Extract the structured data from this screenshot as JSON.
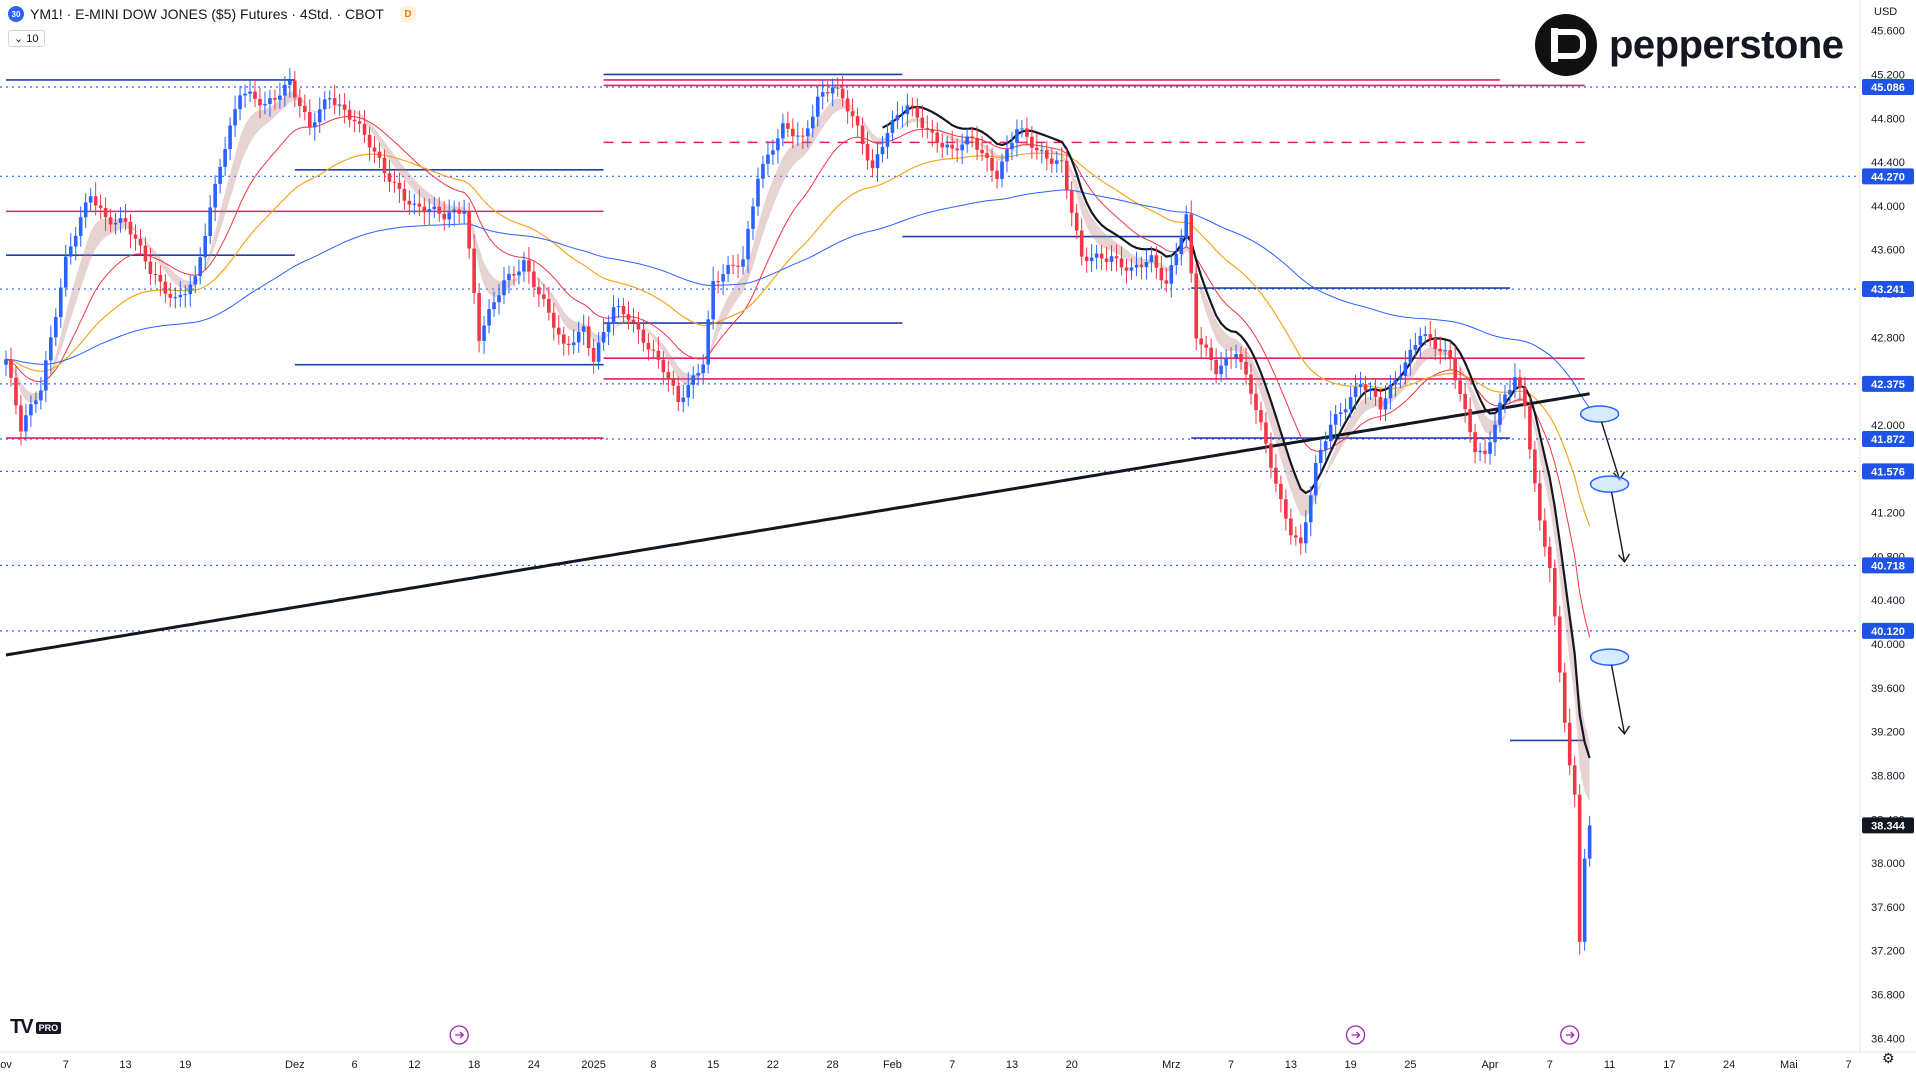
{
  "header": {
    "symbol_badge": "30",
    "title": "YM1! · E-MINI DOW JONES ($5) Futures · 4Std. · CBOT",
    "delay_badge": "D",
    "indicator_toggle": "⌄ 10"
  },
  "currency": "USD",
  "brand": {
    "name": "pepperstone"
  },
  "tv": {
    "mark": "TV",
    "pro": "PRO"
  },
  "scale_button": "⚙",
  "colors": {
    "up": "#2962ff",
    "down": "#f23645",
    "level_line": "#1e40af",
    "zone_line": "#e91e63",
    "ema_black": "#131722"
  },
  "chart_data": {
    "type": "candlestick",
    "title": "YM1! · E-MINI DOW JONES ($5) Futures · 4Std. · CBOT",
    "ylim": [
      36200,
      46000
    ],
    "y_ticks": [
      36400,
      36800,
      37200,
      37600,
      38000,
      38400,
      38800,
      39200,
      39600,
      40000,
      40400,
      40800,
      41200,
      41600,
      42000,
      42400,
      42800,
      43200,
      43600,
      44000,
      44400,
      44800,
      45200,
      45600
    ],
    "x_ticks": [
      {
        "label": "ov",
        "i": 0
      },
      {
        "label": "7",
        "i": 12
      },
      {
        "label": "13",
        "i": 24
      },
      {
        "label": "19",
        "i": 36
      },
      {
        "label": "Dez",
        "i": 58
      },
      {
        "label": "6",
        "i": 70
      },
      {
        "label": "12",
        "i": 82
      },
      {
        "label": "18",
        "i": 94
      },
      {
        "label": "24",
        "i": 106
      },
      {
        "label": "2025",
        "i": 118
      },
      {
        "label": "8",
        "i": 130
      },
      {
        "label": "15",
        "i": 142
      },
      {
        "label": "22",
        "i": 154
      },
      {
        "label": "28",
        "i": 166
      },
      {
        "label": "Feb",
        "i": 178
      },
      {
        "label": "7",
        "i": 190
      },
      {
        "label": "13",
        "i": 202
      },
      {
        "label": "20",
        "i": 214
      },
      {
        "label": "Mrz",
        "i": 234
      },
      {
        "label": "7",
        "i": 246
      },
      {
        "label": "13",
        "i": 258
      },
      {
        "label": "19",
        "i": 270
      },
      {
        "label": "25",
        "i": 282
      },
      {
        "label": "Apr",
        "i": 298
      },
      {
        "label": "7",
        "i": 310
      },
      {
        "label": "11",
        "i": 322
      },
      {
        "label": "17",
        "i": 334
      },
      {
        "label": "24",
        "i": 346
      },
      {
        "label": "Mai",
        "i": 358
      },
      {
        "label": "7",
        "i": 370
      }
    ],
    "price_labels": [
      {
        "value": 45086,
        "text": "45.086"
      },
      {
        "value": 44270,
        "text": "44.270"
      },
      {
        "value": 43241,
        "text": "43.241"
      },
      {
        "value": 42375,
        "text": "42.375"
      },
      {
        "value": 41872,
        "text": "41.872"
      },
      {
        "value": 41576,
        "text": "41.576"
      },
      {
        "value": 40718,
        "text": "40.718"
      },
      {
        "value": 40120,
        "text": "40.120"
      },
      {
        "value": 38344,
        "text": "38.344",
        "current": true
      }
    ],
    "anchors": [
      [
        0,
        42600
      ],
      [
        3,
        41950
      ],
      [
        7,
        42350
      ],
      [
        12,
        43500
      ],
      [
        17,
        44100
      ],
      [
        20,
        43900
      ],
      [
        24,
        43850
      ],
      [
        29,
        43400
      ],
      [
        34,
        43150
      ],
      [
        38,
        43300
      ],
      [
        43,
        44400
      ],
      [
        47,
        45050
      ],
      [
        52,
        44900
      ],
      [
        57,
        45150
      ],
      [
        61,
        44700
      ],
      [
        65,
        45000
      ],
      [
        70,
        44800
      ],
      [
        76,
        44300
      ],
      [
        82,
        44000
      ],
      [
        88,
        43900
      ],
      [
        92,
        44000
      ],
      [
        95,
        42800
      ],
      [
        100,
        43300
      ],
      [
        104,
        43500
      ],
      [
        108,
        43100
      ],
      [
        112,
        42700
      ],
      [
        116,
        42900
      ],
      [
        118,
        42600
      ],
      [
        122,
        43050
      ],
      [
        125,
        43000
      ],
      [
        128,
        42800
      ],
      [
        132,
        42500
      ],
      [
        135,
        42200
      ],
      [
        140,
        42600
      ],
      [
        142,
        43300
      ],
      [
        148,
        43500
      ],
      [
        151,
        44300
      ],
      [
        156,
        44700
      ],
      [
        160,
        44600
      ],
      [
        163,
        45000
      ],
      [
        166,
        45100
      ],
      [
        170,
        44800
      ],
      [
        174,
        44350
      ],
      [
        177,
        44700
      ],
      [
        181,
        44900
      ],
      [
        185,
        44700
      ],
      [
        190,
        44500
      ],
      [
        194,
        44600
      ],
      [
        199,
        44300
      ],
      [
        203,
        44700
      ],
      [
        207,
        44500
      ],
      [
        212,
        44400
      ],
      [
        216,
        43500
      ],
      [
        222,
        43550
      ],
      [
        226,
        43400
      ],
      [
        230,
        43500
      ],
      [
        233,
        43300
      ],
      [
        237,
        43900
      ],
      [
        239,
        42800
      ],
      [
        243,
        42500
      ],
      [
        247,
        42700
      ],
      [
        250,
        42300
      ],
      [
        253,
        41800
      ],
      [
        256,
        41300
      ],
      [
        258,
        41050
      ],
      [
        260,
        40900
      ],
      [
        263,
        41600
      ],
      [
        266,
        42000
      ],
      [
        269,
        42200
      ],
      [
        272,
        42400
      ],
      [
        276,
        42150
      ],
      [
        280,
        42500
      ],
      [
        284,
        42850
      ],
      [
        287,
        42700
      ],
      [
        290,
        42600
      ],
      [
        292,
        42300
      ],
      [
        295,
        41800
      ],
      [
        297,
        41700
      ],
      [
        300,
        42150
      ],
      [
        303,
        42450
      ],
      [
        305,
        42200
      ],
      [
        308,
        41100
      ],
      [
        310,
        40700
      ],
      [
        312,
        39700
      ],
      [
        314,
        38900
      ],
      [
        315,
        38600
      ],
      [
        316,
        37300
      ],
      [
        317,
        38100
      ],
      [
        318,
        38344
      ]
    ],
    "series": [
      {
        "name": "EMA 5",
        "color": "#f23645",
        "kind": "line",
        "offset": 0,
        "lag": 4
      },
      {
        "name": "EMA 20",
        "color": "#f57c00",
        "kind": "line",
        "offset": 0,
        "lag": 14
      },
      {
        "name": "EMA 50",
        "color": "#2962ff",
        "kind": "line",
        "offset": 0,
        "lag": 30
      },
      {
        "name": "EMA 200",
        "color": "#131722",
        "kind": "line",
        "offset": 0,
        "lag": 60
      }
    ],
    "levels": [
      {
        "value": 45086,
        "color": "#2962ff",
        "style": "dotted"
      },
      {
        "value": 44270,
        "color": "#2962ff",
        "style": "dotted"
      },
      {
        "value": 43241,
        "color": "#2962ff",
        "style": "dotted"
      },
      {
        "value": 42375,
        "color": "#2962ff",
        "style": "dotted"
      },
      {
        "value": 41872,
        "color": "#2962ff",
        "style": "dotted"
      },
      {
        "value": 41576,
        "color": "#2962ff",
        "style": "dotted"
      },
      {
        "value": 40718,
        "color": "#2962ff",
        "style": "dotted"
      },
      {
        "value": 40120,
        "color": "#2962ff",
        "style": "dotted"
      }
    ],
    "segments": [
      {
        "from": 0,
        "to": 58,
        "value": 45150,
        "color": "#1e40af"
      },
      {
        "from": 58,
        "to": 120,
        "value": 44330,
        "color": "#1e40af"
      },
      {
        "from": 0,
        "to": 58,
        "value": 43550,
        "color": "#1e40af"
      },
      {
        "from": 58,
        "to": 120,
        "value": 42550,
        "color": "#1e40af"
      },
      {
        "from": 120,
        "to": 180,
        "value": 42930,
        "color": "#1e40af"
      },
      {
        "from": 120,
        "to": 180,
        "value": 45200,
        "color": "#1e40af"
      },
      {
        "from": 180,
        "to": 238,
        "value": 45100,
        "color": "#1e40af"
      },
      {
        "from": 180,
        "to": 238,
        "value": 43720,
        "color": "#1e40af"
      },
      {
        "from": 238,
        "to": 302,
        "value": 43250,
        "color": "#1e40af"
      },
      {
        "from": 238,
        "to": 302,
        "value": 41880,
        "color": "#1e40af"
      },
      {
        "from": 302,
        "to": 317,
        "value": 39120,
        "color": "#1e40af"
      },
      {
        "from": 0,
        "to": 120,
        "value": 43950,
        "color": "#e91e63"
      },
      {
        "from": 0,
        "to": 120,
        "value": 41880,
        "color": "#e91e63"
      },
      {
        "from": 120,
        "to": 317,
        "value": 42610,
        "color": "#e91e63"
      },
      {
        "from": 120,
        "to": 317,
        "value": 42420,
        "color": "#e91e63"
      },
      {
        "from": 120,
        "to": 300,
        "value": 45150,
        "color": "#e91e63"
      },
      {
        "from": 120,
        "to": 317,
        "value": 45100,
        "color": "#e91e63"
      },
      {
        "from": 120,
        "to": 317,
        "value": 44580,
        "color": "#e91e63",
        "dash": true
      }
    ],
    "forecast_targets": [
      {
        "ellipse": [
          320,
          42100
        ],
        "arrow_to": [
          324,
          41500
        ]
      },
      {
        "ellipse": [
          322,
          41460
        ],
        "arrow_to": [
          325,
          40750
        ]
      },
      {
        "ellipse": [
          322,
          39880
        ],
        "arrow_to": [
          325,
          39180
        ]
      }
    ],
    "events": [
      {
        "i": 91
      },
      {
        "i": 271
      },
      {
        "i": 314
      }
    ]
  }
}
